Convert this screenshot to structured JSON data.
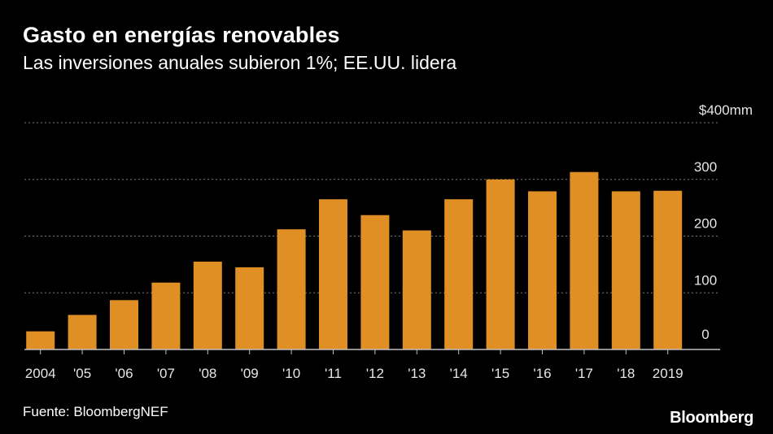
{
  "chart_data": {
    "type": "bar",
    "title": "Gasto en energías renovables",
    "subtitle": "Las inversiones anuales subieron 1%; EE.UU. lidera",
    "xlabel": "",
    "ylabel": "",
    "ylim": [
      0,
      400
    ],
    "y_ticks": [
      0,
      100,
      200,
      300,
      400
    ],
    "y_tick_labels": [
      "0",
      "100",
      "200",
      "300",
      "$400mm"
    ],
    "categories": [
      "2004",
      "'05",
      "'06",
      "'07",
      "'08",
      "'09",
      "'10",
      "'11",
      "'12",
      "'13",
      "'14",
      "'15",
      "'16",
      "'17",
      "'18",
      "2019"
    ],
    "values": [
      32,
      61,
      87,
      118,
      155,
      145,
      212,
      265,
      237,
      210,
      265,
      300,
      279,
      313,
      279,
      280
    ],
    "grid": true,
    "bar_color": "#E08F24",
    "grid_color": "#7a7a7a",
    "axis_color": "#bfbfbf",
    "text_color": "#ffffff",
    "tick_label_color": "#e6e6e6"
  },
  "footer": {
    "source": "Fuente: BloombergNEF",
    "brand": "Bloomberg"
  }
}
